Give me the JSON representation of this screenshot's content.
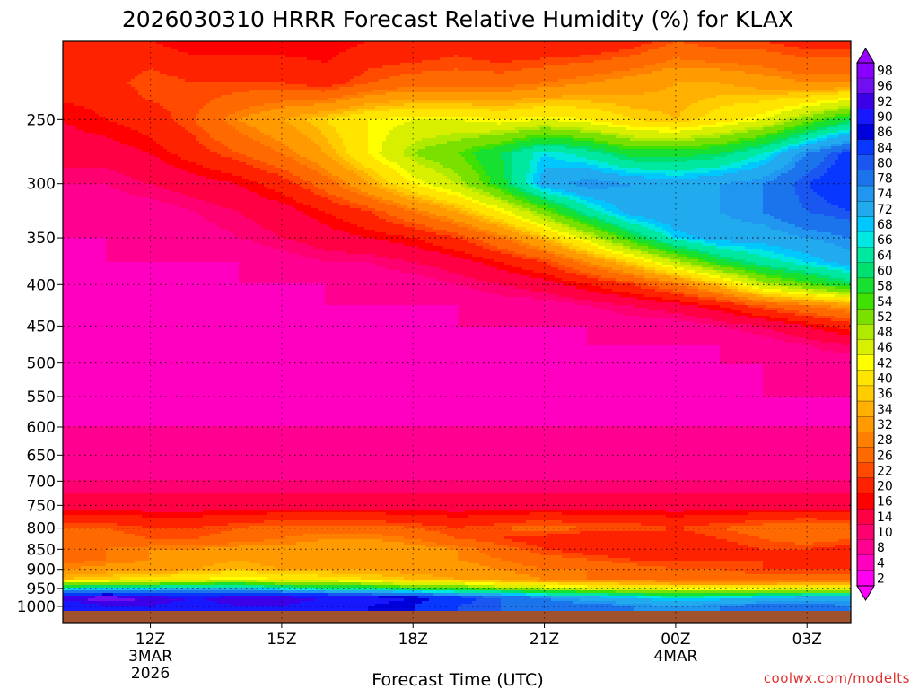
{
  "chart_data": {
    "type": "heatmap",
    "title": "2026030310 HRRR Forecast Relative Humidity (%) for KLAX",
    "xlabel": "Forecast Time (UTC)",
    "ylabel": "",
    "credit": "coolwx.com/modelts",
    "x_ticks": [
      {
        "label": "12Z",
        "sub": [
          "3MAR",
          "2026"
        ]
      },
      {
        "label": "15Z",
        "sub": []
      },
      {
        "label": "18Z",
        "sub": []
      },
      {
        "label": "21Z",
        "sub": []
      },
      {
        "label": "00Z",
        "sub": [
          "4MAR"
        ]
      },
      {
        "label": "03Z",
        "sub": []
      }
    ],
    "y_ticks": [
      250,
      300,
      350,
      400,
      450,
      500,
      550,
      600,
      650,
      700,
      750,
      800,
      850,
      900,
      950,
      1000
    ],
    "x_range_hours": [
      10,
      28
    ],
    "y_range_hpa": [
      200,
      1013
    ],
    "x_hours": [
      10,
      11,
      12,
      13,
      14,
      15,
      16,
      17,
      18,
      19,
      20,
      21,
      22,
      23,
      24,
      25,
      26,
      27,
      28
    ],
    "y_levels": [
      200,
      225,
      250,
      275,
      300,
      325,
      350,
      375,
      400,
      425,
      450,
      475,
      500,
      550,
      600,
      650,
      700,
      750,
      800,
      825,
      850,
      875,
      900,
      925,
      950,
      975,
      1000
    ],
    "rh_percent": [
      [
        18,
        18,
        16,
        14,
        14,
        14,
        14,
        16,
        16,
        18,
        16,
        16,
        16,
        18,
        22,
        20,
        20,
        18,
        18
      ],
      [
        18,
        18,
        22,
        20,
        20,
        20,
        18,
        22,
        24,
        24,
        24,
        26,
        28,
        30,
        32,
        32,
        30,
        28,
        28
      ],
      [
        14,
        16,
        18,
        22,
        28,
        32,
        36,
        40,
        42,
        42,
        40,
        42,
        40,
        36,
        34,
        38,
        42,
        50,
        58
      ],
      [
        12,
        12,
        14,
        18,
        22,
        26,
        32,
        40,
        48,
        52,
        58,
        66,
        62,
        56,
        56,
        58,
        64,
        74,
        82
      ],
      [
        8,
        8,
        10,
        12,
        14,
        18,
        24,
        32,
        40,
        46,
        56,
        70,
        74,
        72,
        70,
        72,
        74,
        80,
        84
      ],
      [
        6,
        6,
        6,
        8,
        10,
        12,
        16,
        20,
        26,
        32,
        40,
        50,
        62,
        70,
        72,
        72,
        74,
        78,
        80
      ],
      [
        4,
        4,
        6,
        6,
        8,
        10,
        12,
        14,
        16,
        20,
        26,
        34,
        44,
        56,
        66,
        70,
        70,
        72,
        74
      ],
      [
        4,
        4,
        4,
        4,
        4,
        6,
        8,
        8,
        10,
        12,
        16,
        20,
        28,
        36,
        46,
        56,
        62,
        66,
        70
      ],
      [
        4,
        4,
        4,
        4,
        4,
        4,
        4,
        6,
        6,
        8,
        10,
        12,
        16,
        20,
        26,
        34,
        46,
        52,
        58
      ],
      [
        4,
        4,
        4,
        4,
        4,
        4,
        4,
        4,
        4,
        4,
        6,
        6,
        8,
        10,
        12,
        16,
        22,
        26,
        30
      ],
      [
        4,
        4,
        4,
        4,
        4,
        4,
        4,
        4,
        4,
        4,
        4,
        4,
        4,
        6,
        6,
        8,
        10,
        14,
        18
      ],
      [
        4,
        2,
        4,
        4,
        4,
        4,
        4,
        4,
        4,
        4,
        4,
        4,
        4,
        4,
        4,
        4,
        6,
        8,
        10
      ],
      [
        4,
        4,
        4,
        4,
        4,
        4,
        4,
        4,
        4,
        4,
        4,
        4,
        4,
        4,
        4,
        4,
        4,
        6,
        6
      ],
      [
        4,
        4,
        4,
        4,
        4,
        4,
        4,
        4,
        4,
        4,
        4,
        2,
        4,
        4,
        4,
        4,
        4,
        4,
        4
      ],
      [
        4,
        4,
        4,
        4,
        4,
        4,
        4,
        4,
        4,
        4,
        4,
        4,
        4,
        4,
        4,
        4,
        4,
        4,
        4
      ],
      [
        6,
        6,
        6,
        6,
        6,
        6,
        6,
        6,
        6,
        6,
        6,
        6,
        6,
        6,
        6,
        6,
        6,
        6,
        6
      ],
      [
        8,
        8,
        8,
        8,
        8,
        8,
        8,
        8,
        8,
        8,
        8,
        8,
        8,
        8,
        8,
        8,
        8,
        8,
        8
      ],
      [
        12,
        12,
        12,
        12,
        12,
        12,
        12,
        12,
        12,
        12,
        12,
        12,
        12,
        12,
        12,
        12,
        12,
        12,
        12
      ],
      [
        22,
        22,
        20,
        20,
        22,
        24,
        24,
        24,
        22,
        20,
        22,
        24,
        22,
        22,
        20,
        22,
        24,
        26,
        24
      ],
      [
        26,
        24,
        22,
        22,
        24,
        26,
        28,
        28,
        26,
        22,
        20,
        18,
        16,
        16,
        18,
        20,
        22,
        24,
        22
      ],
      [
        24,
        26,
        28,
        28,
        30,
        30,
        30,
        32,
        30,
        28,
        24,
        20,
        18,
        16,
        16,
        18,
        20,
        20,
        18
      ],
      [
        24,
        26,
        28,
        30,
        32,
        30,
        30,
        30,
        30,
        28,
        26,
        24,
        22,
        20,
        20,
        20,
        20,
        20,
        18
      ],
      [
        28,
        30,
        30,
        32,
        34,
        32,
        32,
        32,
        30,
        30,
        28,
        26,
        26,
        24,
        22,
        22,
        20,
        20,
        20
      ],
      [
        34,
        36,
        38,
        40,
        42,
        40,
        38,
        36,
        34,
        32,
        30,
        28,
        26,
        26,
        24,
        24,
        24,
        24,
        24
      ],
      [
        64,
        66,
        66,
        68,
        68,
        64,
        62,
        60,
        56,
        54,
        50,
        46,
        44,
        42,
        40,
        40,
        40,
        42,
        42
      ],
      [
        92,
        94,
        92,
        90,
        92,
        92,
        90,
        88,
        86,
        82,
        78,
        74,
        70,
        68,
        64,
        66,
        68,
        70,
        70
      ],
      [
        86,
        90,
        90,
        88,
        90,
        90,
        88,
        86,
        84,
        80,
        78,
        76,
        76,
        74,
        72,
        74,
        76,
        76,
        74
      ]
    ],
    "colorbar_labels": [
      98,
      96,
      92,
      90,
      86,
      84,
      80,
      78,
      74,
      72,
      68,
      66,
      64,
      60,
      58,
      54,
      52,
      48,
      46,
      42,
      40,
      36,
      34,
      32,
      28,
      26,
      22,
      20,
      16,
      14,
      10,
      8,
      4,
      2
    ],
    "colorbar_colors": [
      "#8800ff",
      "#7010f0",
      "#3c00e8",
      "#1818ff",
      "#0000dc",
      "#0838ff",
      "#1a56f0",
      "#1c74ec",
      "#2196f0",
      "#22aaee",
      "#00c8ff",
      "#00e8e0",
      "#00e8a0",
      "#00e070",
      "#18e030",
      "#40e000",
      "#7ae000",
      "#b0ea00",
      "#d8f000",
      "#ffff00",
      "#ffe400",
      "#ffcc00",
      "#ffb000",
      "#ff9a00",
      "#ff8000",
      "#ff6a00",
      "#ff4a00",
      "#ff2200",
      "#ff0000",
      "#ff0044",
      "#ff0070",
      "#ff0090",
      "#ff00c0",
      "#ff00f0"
    ],
    "ground_color": "#a0522d",
    "grid": true
  }
}
